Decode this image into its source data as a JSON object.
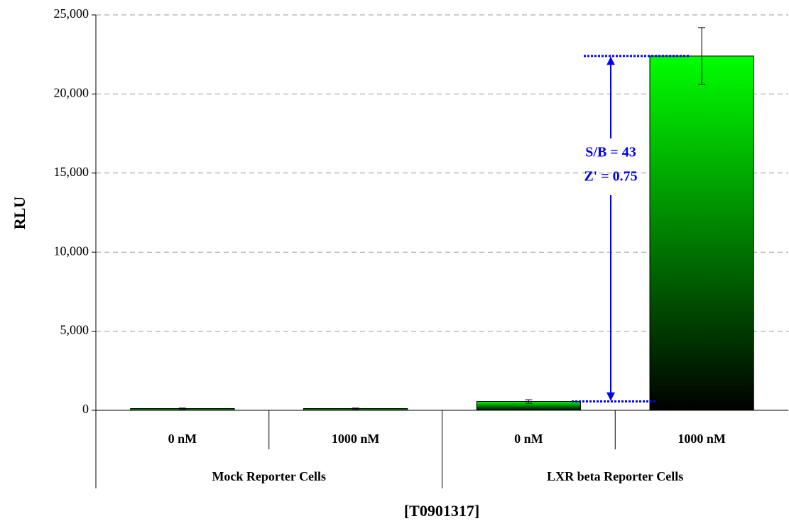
{
  "chart_data": {
    "type": "bar",
    "y_label": "RLU",
    "x_label": "[T0901317]",
    "categories": [
      "0 nM",
      "1000 nM",
      "0 nM",
      "1000 nM"
    ],
    "groups": [
      "Mock Reporter Cells",
      "LXR beta Reporter Cells"
    ],
    "values": [
      110,
      110,
      560,
      22400
    ],
    "errors": [
      30,
      30,
      110,
      1800
    ],
    "color": "#00ff00",
    "ylim": [
      0,
      25000
    ],
    "yticks": [
      0,
      {
        "value": 5000,
        "label": "5,000"
      },
      {
        "value": 10000,
        "label": "10,000"
      },
      {
        "value": 15000,
        "label": "15,000"
      },
      {
        "value": 20000,
        "label": "20,000"
      },
      {
        "value": 25000,
        "label": "25,000"
      }
    ],
    "grid": true,
    "annotations": [
      "S/B = 43",
      "Z' = 0.75"
    ]
  }
}
